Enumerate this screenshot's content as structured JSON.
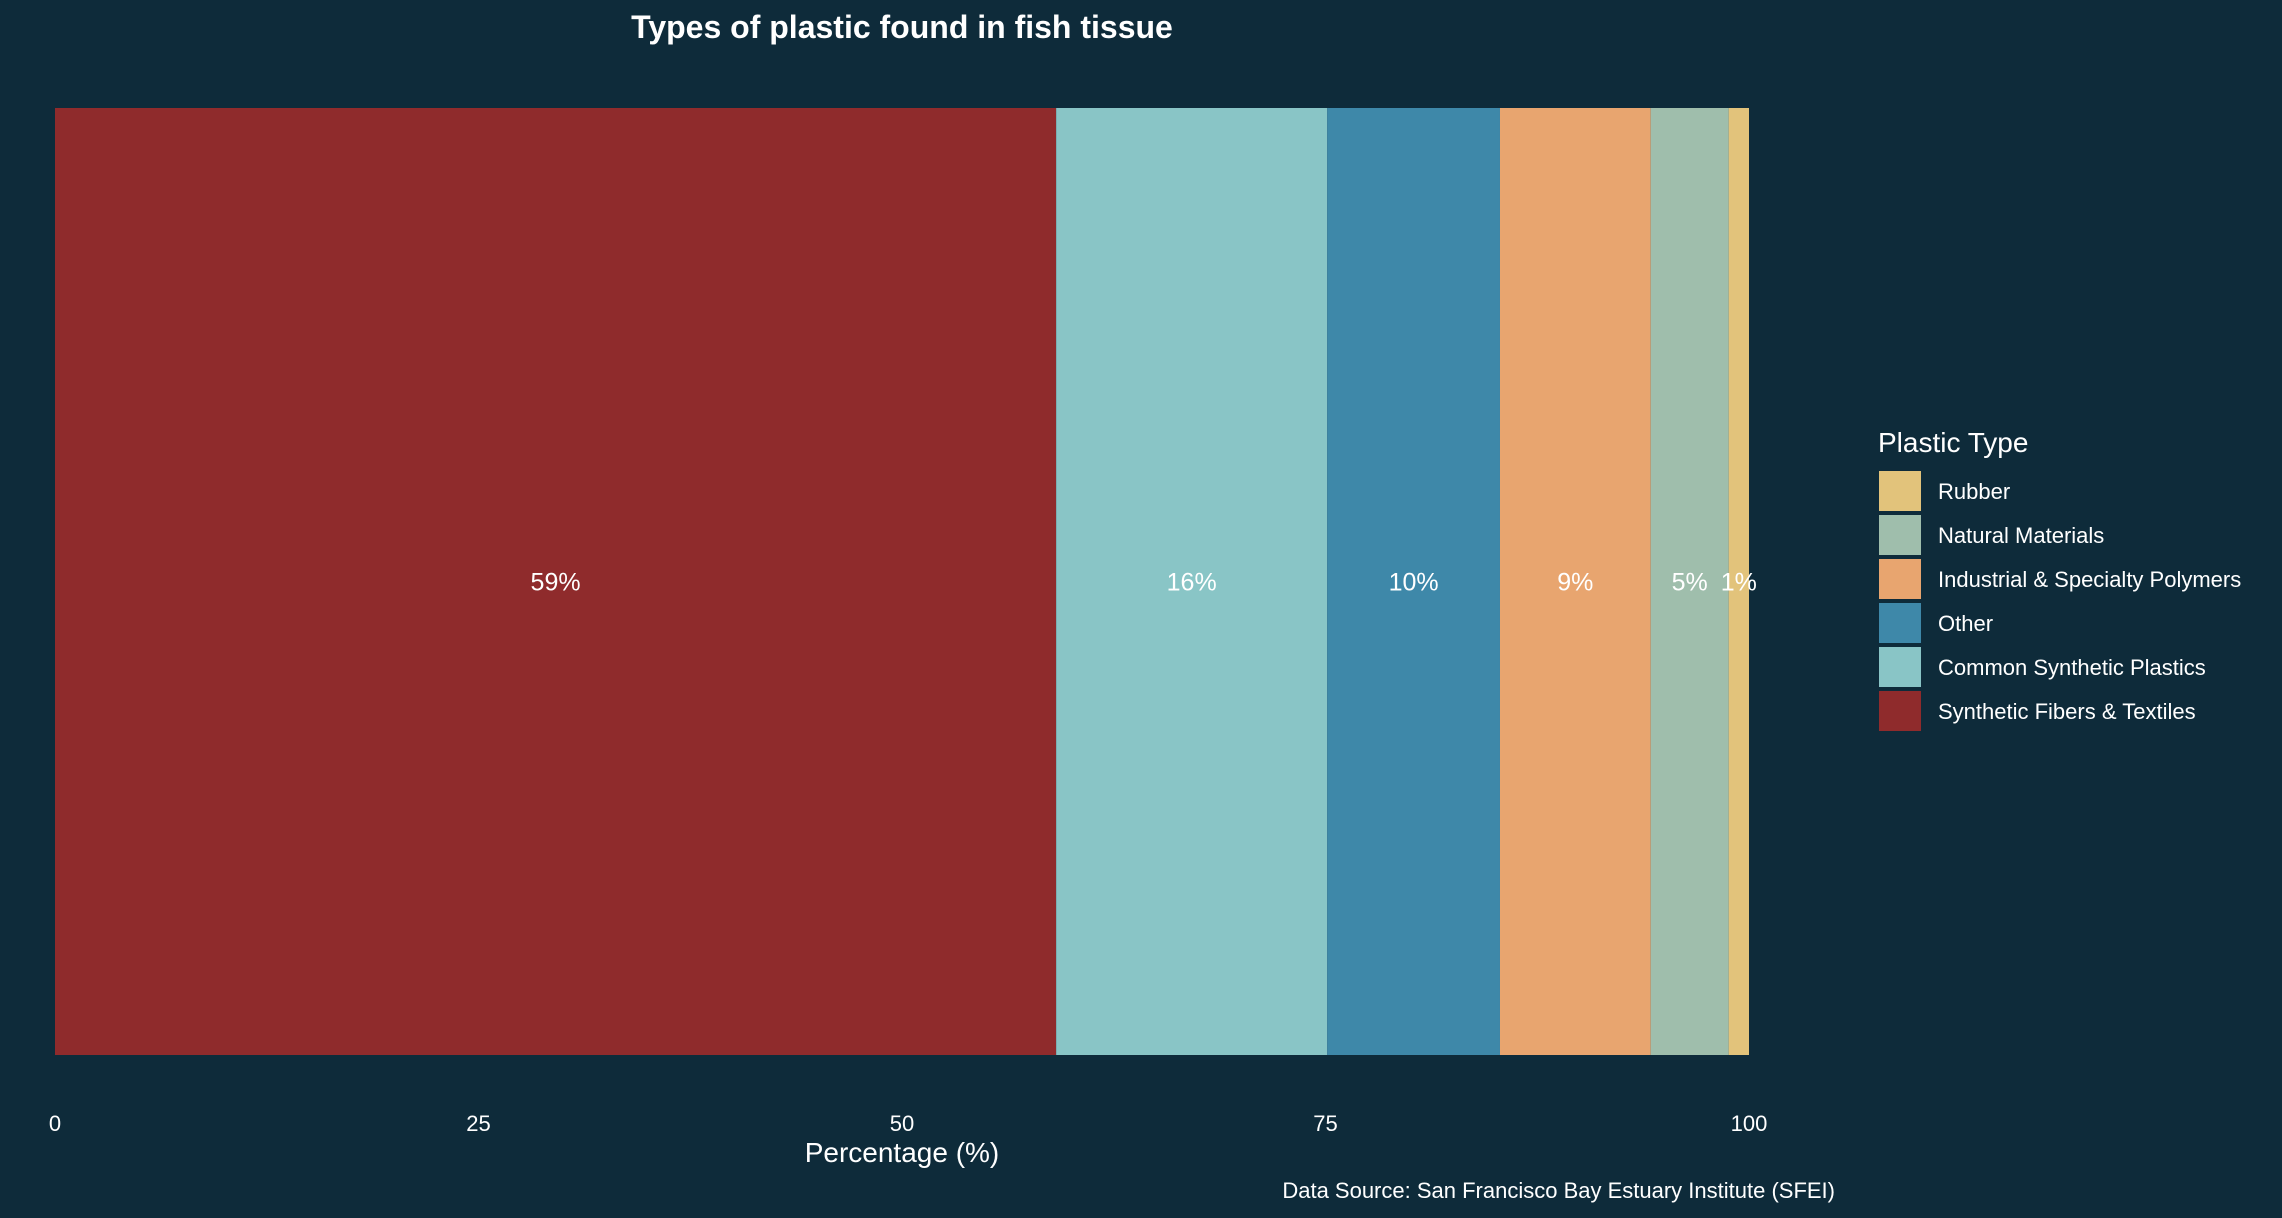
{
  "chart_data": {
    "type": "bar",
    "orientation": "horizontal",
    "stacked": true,
    "title": "Types of plastic found in fish tissue",
    "xlabel": "Percentage (%)",
    "ylabel": "",
    "xlim": [
      0,
      100
    ],
    "x_ticks": [
      0,
      25,
      50,
      75,
      100
    ],
    "x_tick_labels": [
      "0",
      "25",
      "50",
      "75",
      "100"
    ],
    "grid": false,
    "caption": "Data Source: San Francisco Bay Estuary Institute (SFEI)",
    "series": [
      {
        "name": "Synthetic Fibers & Textiles",
        "value": 59.1,
        "label": "59%",
        "color": "#8f2b2c"
      },
      {
        "name": "Common Synthetic Plastics",
        "value": 16.0,
        "label": "16%",
        "color": "#89c5c6"
      },
      {
        "name": "Other",
        "value": 10.2,
        "label": "10%",
        "color": "#3e88a9"
      },
      {
        "name": "Industrial & Specialty Polymers",
        "value": 8.9,
        "label": "9%",
        "color": "#e8a56f"
      },
      {
        "name": "Natural Materials",
        "value": 4.6,
        "label": "5%",
        "color": "#9fbeac"
      },
      {
        "name": "Rubber",
        "value": 1.2,
        "label": "1%",
        "color": "#e2c37b"
      }
    ],
    "legend": {
      "title": "Plastic Type",
      "position": "right",
      "order": [
        "Rubber",
        "Natural Materials",
        "Industrial & Specialty Polymers",
        "Other",
        "Common Synthetic Plastics",
        "Synthetic Fibers & Textiles"
      ]
    },
    "background_color": "#0e2b3a",
    "text_color": "#ffffff"
  }
}
